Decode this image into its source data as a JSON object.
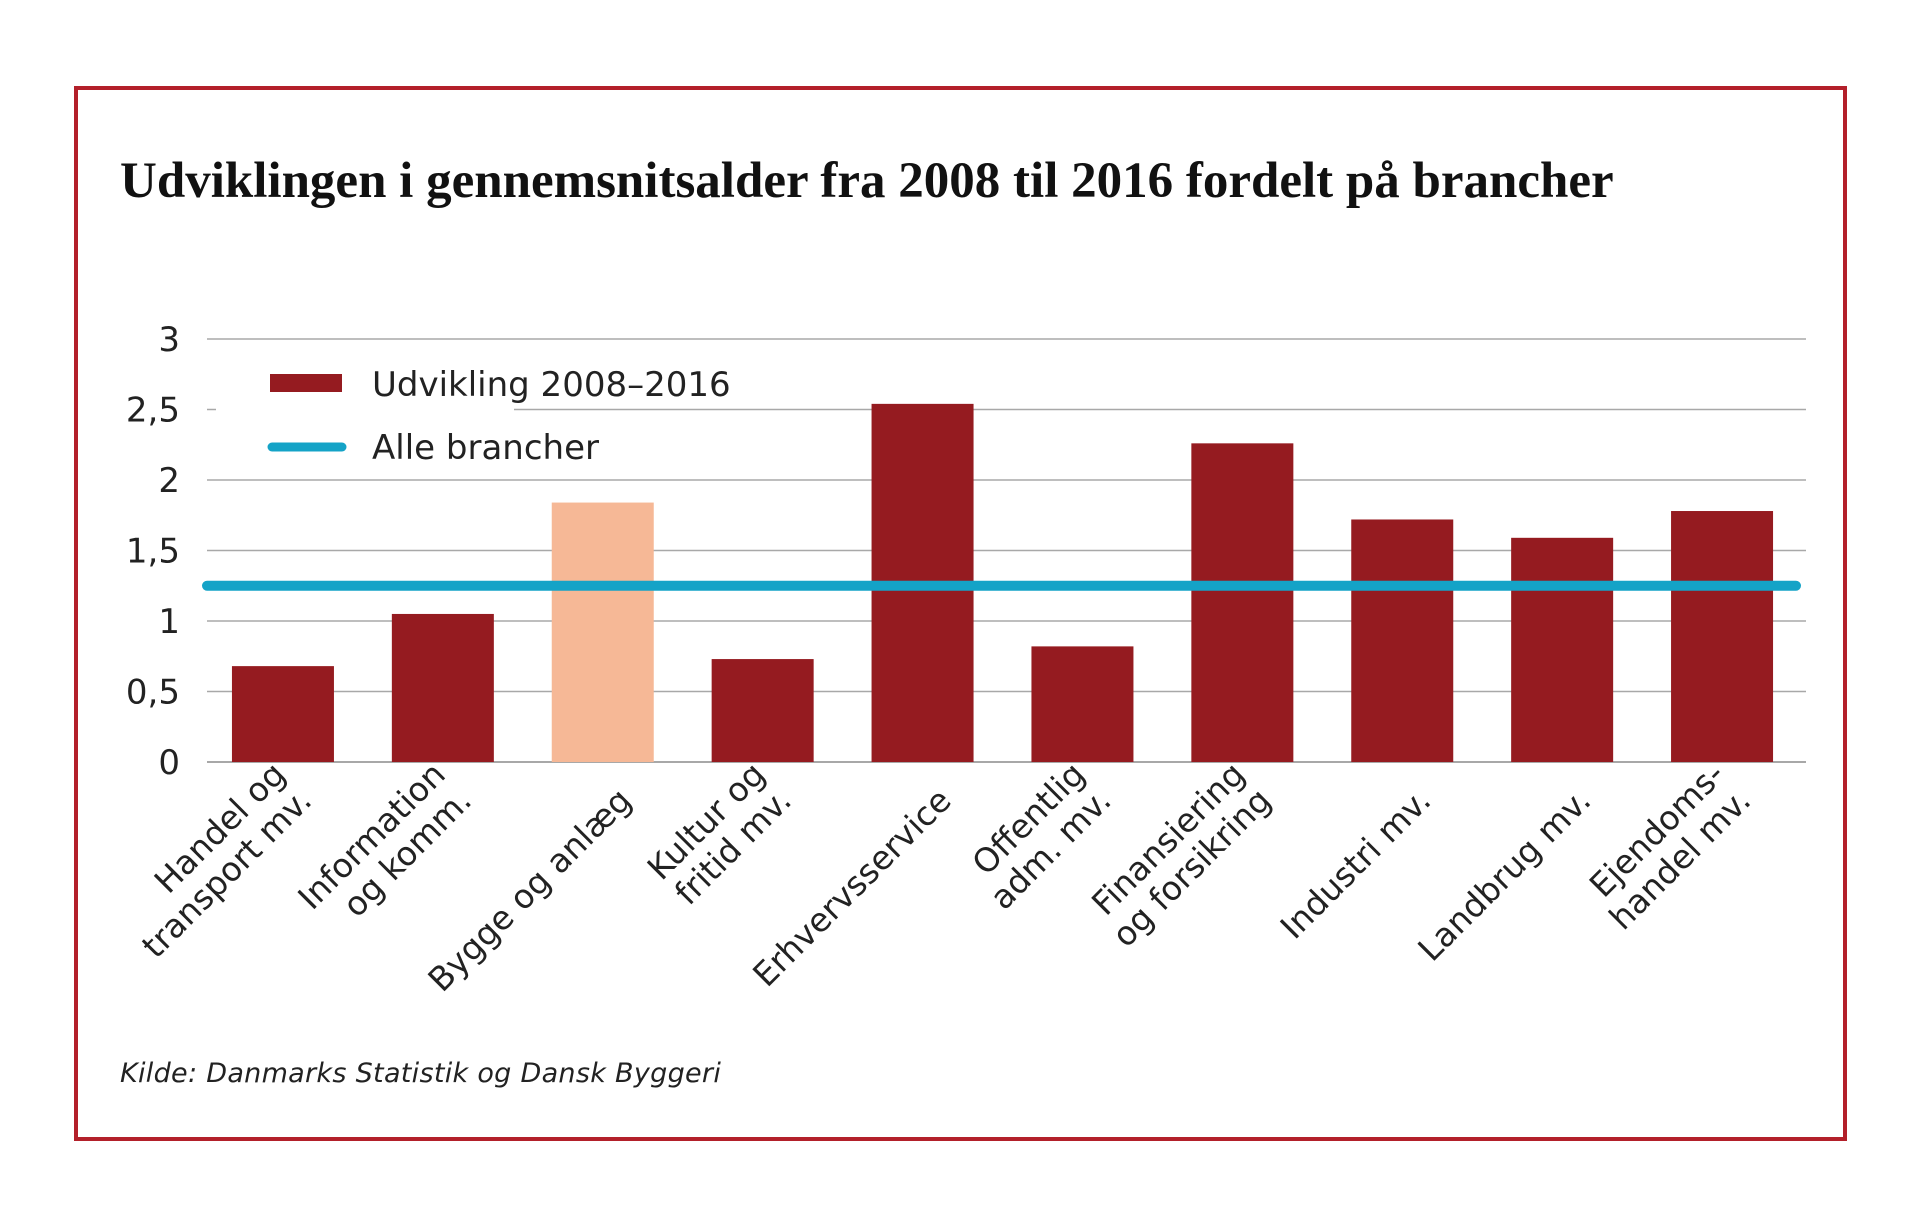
{
  "chart_data": {
    "type": "bar",
    "title": "Udviklingen i gennemsnitsalder fra 2008 til 2016 fordelt på brancher",
    "categories": [
      [
        "Handel og",
        "transport mv."
      ],
      [
        "Information",
        "og komm."
      ],
      [
        "Bygge og anlæg"
      ],
      [
        "Kultur og",
        "fritid mv."
      ],
      [
        "Erhvervsservice"
      ],
      [
        "Offentlig",
        "adm. mv."
      ],
      [
        "Finansiering",
        "og forsikring"
      ],
      [
        "Industri mv."
      ],
      [
        "Landbrug mv."
      ],
      [
        "Ejendoms-",
        "handel mv."
      ]
    ],
    "series": [
      {
        "name": "Udvikling 2008–2016",
        "values": [
          0.68,
          1.05,
          1.84,
          0.73,
          2.54,
          0.82,
          2.26,
          1.72,
          1.59,
          1.78
        ],
        "color": "#951b20",
        "highlight_index": 2,
        "highlight_color": "#f6b896"
      }
    ],
    "reference_line": {
      "name": "Alle brancher",
      "value": 1.25,
      "color": "#14a3c7"
    },
    "y_ticks": [
      0,
      0.5,
      1,
      1.5,
      2,
      2.5,
      3
    ],
    "y_tick_labels": [
      "0",
      "0,5",
      "1",
      "1,5",
      "2",
      "2,5",
      "3"
    ],
    "ylim": [
      0,
      3
    ],
    "grid": true,
    "legend_position": "top-left",
    "xlabel": "",
    "ylabel": "",
    "source": "Kilde: Danmarks Statistik og Dansk Byggeri"
  }
}
